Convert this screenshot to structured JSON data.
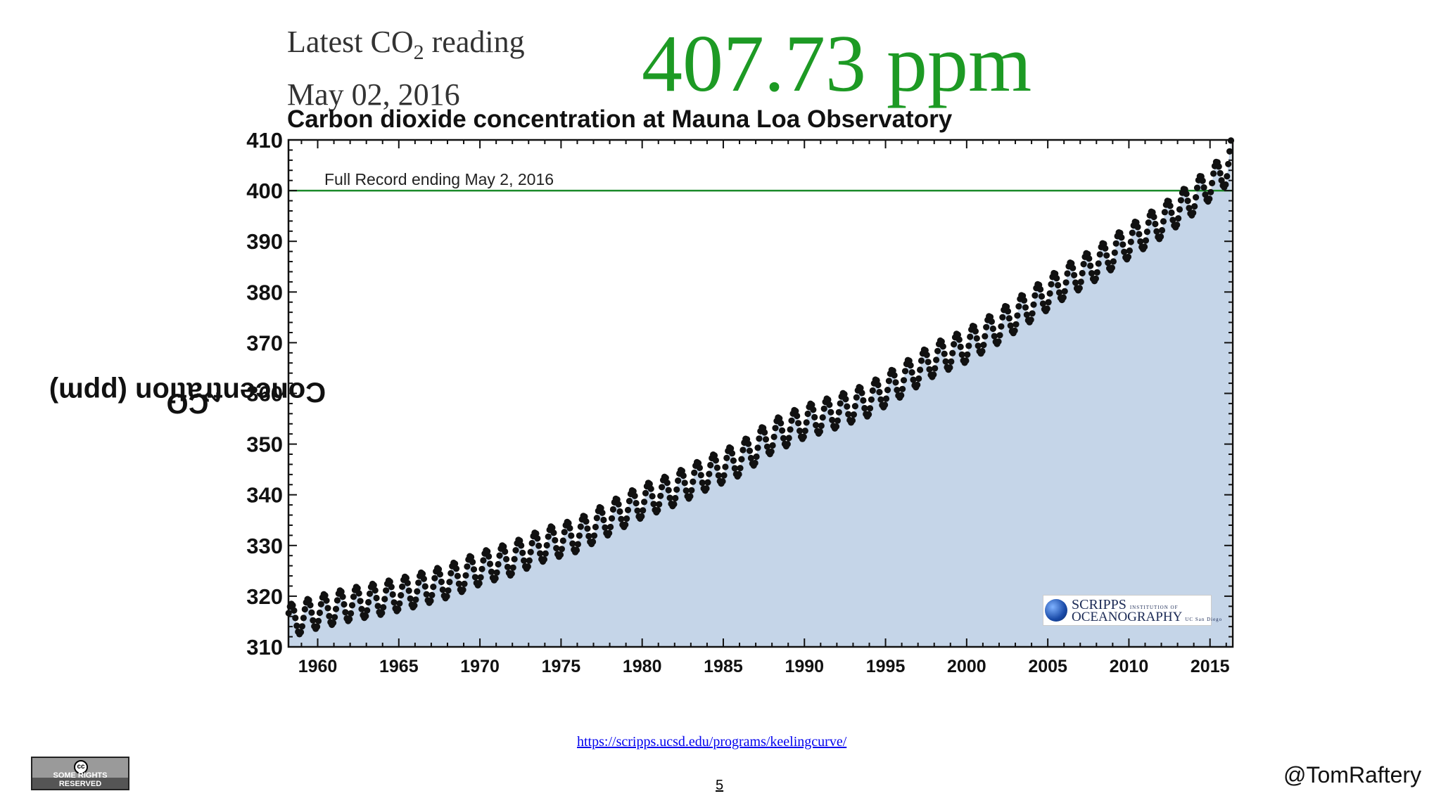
{
  "header": {
    "reading_label_prefix": "Latest CO",
    "reading_label_sub": "2",
    "reading_label_suffix": " reading",
    "reading_date": "May 02, 2016",
    "reading_value": "407.73 ppm"
  },
  "footer": {
    "source_url": "https://scripps.ucsd.edu/programs/keelingcurve/",
    "page_number": "5",
    "author_handle": "@TomRaftery",
    "license_text": "SOME RIGHTS RESERVED",
    "license_icon": "creative-commons-icon"
  },
  "logo": {
    "line1": "SCRIPPS",
    "line1_small": "INSTITUTION OF",
    "line2": "OCEANOGRAPHY",
    "line2_small": "UC San Diego"
  },
  "colors": {
    "reading_green": "#1d9a24",
    "reference_line": "#1b8a2a",
    "area_fill": "#c5d5e8",
    "marker": "#111111"
  },
  "chart_data": {
    "type": "scatter",
    "title": "Carbon dioxide concentration at Mauna Loa Observatory",
    "ylabel_prefix": "CO",
    "ylabel_sub": "2",
    "ylabel_suffix": " Concentration (ppm)",
    "xlabel": "",
    "xlim": [
      1958.2,
      2016.4
    ],
    "ylim": [
      310,
      410
    ],
    "x_ticks": [
      1960,
      1965,
      1970,
      1975,
      1980,
      1985,
      1990,
      1995,
      2000,
      2005,
      2010,
      2015
    ],
    "y_ticks": [
      310,
      320,
      330,
      340,
      350,
      360,
      370,
      380,
      390,
      400,
      410
    ],
    "grid": false,
    "area_fill_under_series": true,
    "annotation": {
      "text": "Full Record ending May 2, 2016"
    },
    "reference_line": {
      "y": 400
    },
    "series": [
      {
        "seasonal_amplitude_ppm": 3.2,
        "points": [
          [
            1958.5,
            315.3
          ],
          [
            1960.0,
            316.9
          ],
          [
            1962.0,
            318.4
          ],
          [
            1964.0,
            319.6
          ],
          [
            1966.0,
            321.1
          ],
          [
            1968.0,
            322.9
          ],
          [
            1970.0,
            325.5
          ],
          [
            1972.0,
            327.4
          ],
          [
            1974.0,
            330.2
          ],
          [
            1976.0,
            332.0
          ],
          [
            1978.0,
            335.4
          ],
          [
            1980.0,
            338.7
          ],
          [
            1982.0,
            341.1
          ],
          [
            1984.0,
            344.2
          ],
          [
            1986.0,
            347.0
          ],
          [
            1988.0,
            351.5
          ],
          [
            1990.0,
            354.4
          ],
          [
            1992.0,
            356.4
          ],
          [
            1994.0,
            358.8
          ],
          [
            1996.0,
            362.6
          ],
          [
            1998.0,
            366.7
          ],
          [
            2000.0,
            369.4
          ],
          [
            2002.0,
            373.2
          ],
          [
            2004.0,
            377.5
          ],
          [
            2006.0,
            381.9
          ],
          [
            2008.0,
            385.6
          ],
          [
            2010.0,
            389.9
          ],
          [
            2012.0,
            393.9
          ],
          [
            2014.0,
            398.6
          ],
          [
            2016.0,
            404.2
          ],
          [
            2016.34,
            407.73
          ]
        ]
      }
    ]
  }
}
